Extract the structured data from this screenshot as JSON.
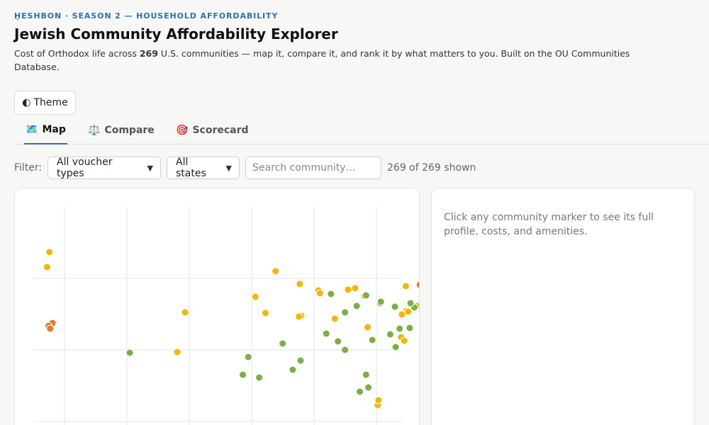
{
  "header": {
    "eyebrow": "ḤESHBON · SEASON 2 — HOUSEHOLD AFFORDABILITY",
    "title": "Jewish Community Affordability Explorer",
    "subtitle_before": "Cost of Orthodox life across ",
    "subtitle_count": "269",
    "subtitle_after": " U.S. communities — map it, compare it, and rank it by what matters to you. Built on the OU Communities Database."
  },
  "theme_button": {
    "icon": "◐",
    "label": "Theme"
  },
  "tabs": [
    {
      "icon": "🗺️",
      "icon_name": "map-icon",
      "label": "Map",
      "active": true
    },
    {
      "icon": "⚖️",
      "icon_name": "scales-icon",
      "label": "Compare",
      "active": false
    },
    {
      "icon": "🎯",
      "icon_name": "target-icon",
      "label": "Scorecard",
      "active": false
    }
  ],
  "filters": {
    "label": "Filter:",
    "voucher_select": "All voucher types",
    "state_select": "All states",
    "search_placeholder": "Search community…",
    "search_value": "",
    "shown_count": "269 of 269 shown"
  },
  "detail_panel": {
    "hint": "Click any community marker to see its full profile, costs, and amenities."
  },
  "map": {
    "colors": {
      "green": "#7cae45",
      "yellow": "#f2b705",
      "orange": "#e37b2a",
      "grid": "#e6e6e0"
    },
    "markers": [
      {
        "lon": -122.3,
        "lat": 47.6,
        "c": "yellow"
      },
      {
        "lon": -122.6,
        "lat": 45.5,
        "c": "yellow"
      },
      {
        "lon": -121.9,
        "lat": 37.6,
        "c": "orange"
      },
      {
        "lon": -122.4,
        "lat": 37.2,
        "c": "orange"
      },
      {
        "lon": -122.2,
        "lat": 36.8,
        "c": "orange"
      },
      {
        "lon": -112.0,
        "lat": 33.4,
        "c": "green"
      },
      {
        "lon": -104.9,
        "lat": 39.1,
        "c": "yellow"
      },
      {
        "lon": -105.9,
        "lat": 33.5,
        "c": "yellow"
      },
      {
        "lon": -93.3,
        "lat": 44.9,
        "c": "yellow"
      },
      {
        "lon": -95.9,
        "lat": 41.3,
        "c": "yellow"
      },
      {
        "lon": -94.6,
        "lat": 39.0,
        "c": "yellow"
      },
      {
        "lon": -90.2,
        "lat": 43.1,
        "c": "yellow"
      },
      {
        "lon": -87.8,
        "lat": 42.2,
        "c": "yellow"
      },
      {
        "lon": -87.6,
        "lat": 41.8,
        "c": "yellow"
      },
      {
        "lon": -86.2,
        "lat": 41.7,
        "c": "green"
      },
      {
        "lon": -84.0,
        "lat": 42.3,
        "c": "yellow"
      },
      {
        "lon": -83.1,
        "lat": 42.5,
        "c": "yellow"
      },
      {
        "lon": -81.9,
        "lat": 41.4,
        "c": "yellow"
      },
      {
        "lon": -81.7,
        "lat": 41.5,
        "c": "green"
      },
      {
        "lon": -79.9,
        "lat": 40.4,
        "c": "green"
      },
      {
        "lon": -79.8,
        "lat": 40.6,
        "c": "green"
      },
      {
        "lon": -78.0,
        "lat": 39.9,
        "c": "green"
      },
      {
        "lon": -76.6,
        "lat": 42.8,
        "c": "yellow"
      },
      {
        "lon": -74.8,
        "lat": 43.0,
        "c": "orange"
      },
      {
        "lon": -73.6,
        "lat": 43.0,
        "c": "orange"
      },
      {
        "lon": -73.2,
        "lat": 42.9,
        "c": "yellow"
      },
      {
        "lon": -72.0,
        "lat": 42.6,
        "c": "yellow"
      },
      {
        "lon": -71.1,
        "lat": 42.4,
        "c": "yellow"
      },
      {
        "lon": -70.3,
        "lat": 43.7,
        "c": "yellow"
      },
      {
        "lon": -74.4,
        "lat": 42.2,
        "c": "yellow"
      },
      {
        "lon": -73.8,
        "lat": 42.0,
        "c": "orange"
      },
      {
        "lon": -72.7,
        "lat": 41.8,
        "c": "yellow"
      },
      {
        "lon": -72.9,
        "lat": 41.3,
        "c": "orange"
      },
      {
        "lon": -73.5,
        "lat": 41.2,
        "c": "yellow"
      },
      {
        "lon": -73.9,
        "lat": 41.0,
        "c": "yellow"
      },
      {
        "lon": -74.0,
        "lat": 40.8,
        "c": "yellow"
      },
      {
        "lon": -73.7,
        "lat": 40.7,
        "c": "yellow"
      },
      {
        "lon": -73.4,
        "lat": 40.9,
        "c": "orange"
      },
      {
        "lon": -74.2,
        "lat": 40.6,
        "c": "yellow"
      },
      {
        "lon": -71.5,
        "lat": 41.8,
        "c": "yellow"
      },
      {
        "lon": -71.4,
        "lat": 42.2,
        "c": "yellow"
      },
      {
        "lon": -72.2,
        "lat": 41.5,
        "c": "yellow"
      },
      {
        "lon": -73.1,
        "lat": 41.5,
        "c": "yellow"
      },
      {
        "lon": -74.6,
        "lat": 40.4,
        "c": "yellow"
      },
      {
        "lon": -74.9,
        "lat": 40.0,
        "c": "orange"
      },
      {
        "lon": -75.2,
        "lat": 40.0,
        "c": "yellow"
      },
      {
        "lon": -75.5,
        "lat": 39.8,
        "c": "green"
      },
      {
        "lon": -76.0,
        "lat": 40.4,
        "c": "green"
      },
      {
        "lon": -74.4,
        "lat": 39.4,
        "c": "green"
      },
      {
        "lon": -76.6,
        "lat": 39.3,
        "c": "yellow"
      },
      {
        "lon": -77.0,
        "lat": 38.9,
        "c": "yellow"
      },
      {
        "lon": -77.1,
        "lat": 38.8,
        "c": "yellow"
      },
      {
        "lon": -76.3,
        "lat": 39.2,
        "c": "yellow"
      },
      {
        "lon": -74.2,
        "lat": 39.8,
        "c": "yellow"
      },
      {
        "lon": -73.0,
        "lat": 40.3,
        "c": "yellow"
      },
      {
        "lon": -73.8,
        "lat": 39.6,
        "c": "orange"
      },
      {
        "lon": -77.4,
        "lat": 36.8,
        "c": "green"
      },
      {
        "lon": -78.6,
        "lat": 36.0,
        "c": "green"
      },
      {
        "lon": -81.5,
        "lat": 37.0,
        "c": "yellow"
      },
      {
        "lon": -85.7,
        "lat": 38.2,
        "c": "yellow"
      },
      {
        "lon": -84.4,
        "lat": 39.1,
        "c": "green"
      },
      {
        "lon": -82.9,
        "lat": 40.0,
        "c": "green"
      },
      {
        "lon": -86.8,
        "lat": 36.1,
        "c": "green"
      },
      {
        "lon": -90.0,
        "lat": 38.6,
        "c": "yellow"
      },
      {
        "lon": -90.3,
        "lat": 38.5,
        "c": "yellow"
      },
      {
        "lon": -85.3,
        "lat": 35.0,
        "c": "green"
      },
      {
        "lon": -84.4,
        "lat": 33.8,
        "c": "green"
      },
      {
        "lon": -80.9,
        "lat": 35.2,
        "c": "green"
      },
      {
        "lon": -77.2,
        "lat": 35.6,
        "c": "yellow"
      },
      {
        "lon": -76.8,
        "lat": 35.1,
        "c": "yellow"
      },
      {
        "lon": -76.1,
        "lat": 36.9,
        "c": "green"
      },
      {
        "lon": -77.9,
        "lat": 34.2,
        "c": "green"
      },
      {
        "lon": -90.1,
        "lat": 32.3,
        "c": "green"
      },
      {
        "lon": -91.1,
        "lat": 31.0,
        "c": "green"
      },
      {
        "lon": -92.4,
        "lat": 34.7,
        "c": "green"
      },
      {
        "lon": -95.4,
        "lat": 29.9,
        "c": "green"
      },
      {
        "lon": -96.8,
        "lat": 32.8,
        "c": "green"
      },
      {
        "lon": -97.5,
        "lat": 30.3,
        "c": "green"
      },
      {
        "lon": -81.4,
        "lat": 28.5,
        "c": "green"
      },
      {
        "lon": -80.2,
        "lat": 26.0,
        "c": "yellow"
      },
      {
        "lon": -80.1,
        "lat": 26.7,
        "c": "yellow"
      },
      {
        "lon": -82.5,
        "lat": 27.9,
        "c": "green"
      },
      {
        "lon": -81.7,
        "lat": 30.3,
        "c": "green"
      }
    ]
  }
}
